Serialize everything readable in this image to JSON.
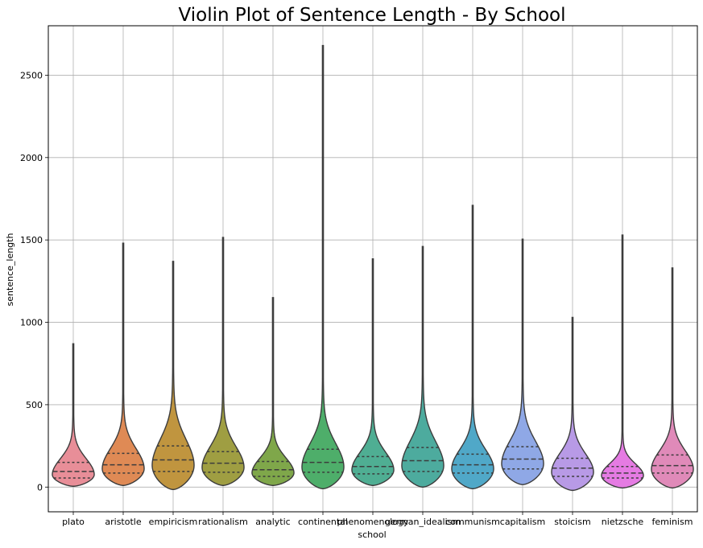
{
  "chart_data": {
    "type": "violin",
    "title": "Violin Plot of Sentence Length - By School",
    "xlabel": "school",
    "ylabel": "sentence_length",
    "ylim": [
      -150,
      2800
    ],
    "yticks": [
      0,
      500,
      1000,
      1500,
      2000,
      2500
    ],
    "grid": true,
    "inner": "quartile",
    "categories": [
      "plato",
      "aristotle",
      "empiricism",
      "rationalism",
      "analytic",
      "continental",
      "phenomenology",
      "german_idealism",
      "communism",
      "capitalism",
      "stoicism",
      "nietzsche",
      "feminism"
    ],
    "series": [
      {
        "category": "plato",
        "min": 5,
        "q1": 55,
        "median": 95,
        "q3": 150,
        "max": 870,
        "color": "#e88e98"
      },
      {
        "category": "aristotle",
        "min": 10,
        "q1": 85,
        "median": 135,
        "q3": 205,
        "max": 1480,
        "color": "#df8a55"
      },
      {
        "category": "empiricism",
        "min": -15,
        "q1": 95,
        "median": 165,
        "q3": 250,
        "max": 1370,
        "color": "#c0953f"
      },
      {
        "category": "rationalism",
        "min": 10,
        "q1": 90,
        "median": 145,
        "q3": 215,
        "max": 1515,
        "color": "#9f9e42"
      },
      {
        "category": "analytic",
        "min": 10,
        "q1": 65,
        "median": 105,
        "q3": 155,
        "max": 1150,
        "color": "#7fa74a"
      },
      {
        "category": "continental",
        "min": -10,
        "q1": 90,
        "median": 150,
        "q3": 230,
        "max": 2680,
        "color": "#4eae6a"
      },
      {
        "category": "phenomenology",
        "min": 10,
        "q1": 80,
        "median": 125,
        "q3": 185,
        "max": 1385,
        "color": "#4fae93"
      },
      {
        "category": "german_idealism",
        "min": 0,
        "q1": 95,
        "median": 160,
        "q3": 240,
        "max": 1460,
        "color": "#4dab9e"
      },
      {
        "category": "communism",
        "min": -10,
        "q1": 85,
        "median": 135,
        "q3": 200,
        "max": 1710,
        "color": "#50a8c8"
      },
      {
        "category": "capitalism",
        "min": 15,
        "q1": 110,
        "median": 170,
        "q3": 245,
        "max": 1505,
        "color": "#8fa8e6"
      },
      {
        "category": "stoicism",
        "min": -20,
        "q1": 65,
        "median": 115,
        "q3": 175,
        "max": 1030,
        "color": "#b89ae6"
      },
      {
        "category": "nietzsche",
        "min": -5,
        "q1": 55,
        "median": 85,
        "q3": 125,
        "max": 1530,
        "color": "#e57be3"
      },
      {
        "category": "feminism",
        "min": -5,
        "q1": 85,
        "median": 130,
        "q3": 195,
        "max": 1330,
        "color": "#e08ab9"
      }
    ]
  }
}
